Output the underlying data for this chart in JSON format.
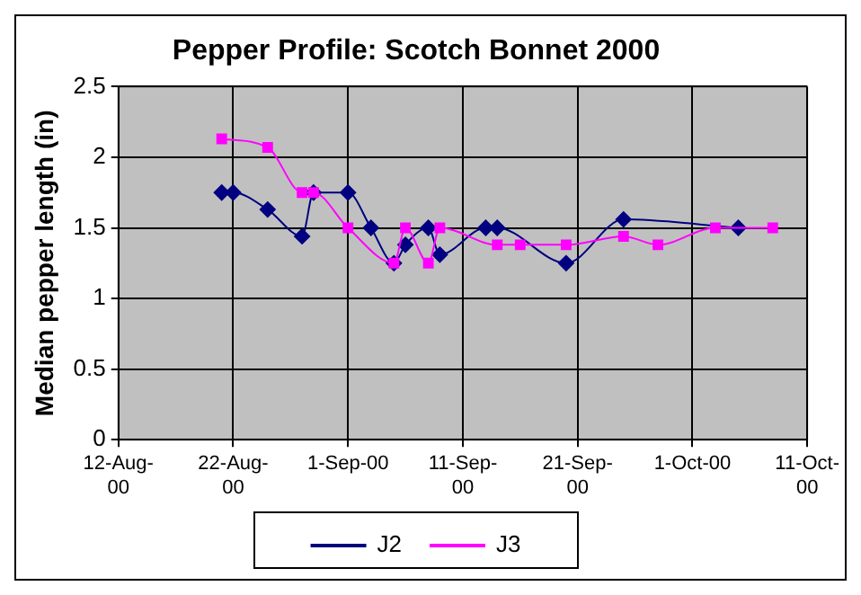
{
  "chart_data": {
    "type": "line",
    "title": "Pepper Profile: Scotch Bonnet 2000",
    "ylabel": "Median pepper length (in)",
    "series": [
      {
        "name": "J2",
        "color": "#000080",
        "marker": "diamond",
        "x": [
          "2000-08-21",
          "2000-08-22",
          "2000-08-25",
          "2000-08-28",
          "2000-08-29",
          "2000-09-01",
          "2000-09-03",
          "2000-09-05",
          "2000-09-06",
          "2000-09-08",
          "2000-09-09",
          "2000-09-13",
          "2000-09-14",
          "2000-09-20",
          "2000-09-25",
          "2000-10-05"
        ],
        "values": [
          1.75,
          1.75,
          1.63,
          1.44,
          1.75,
          1.75,
          1.5,
          1.25,
          1.38,
          1.5,
          1.31,
          1.5,
          1.5,
          1.25,
          1.56,
          1.5
        ]
      },
      {
        "name": "J3",
        "color": "#ff00ff",
        "marker": "square",
        "x": [
          "2000-08-21",
          "2000-08-25",
          "2000-08-28",
          "2000-08-29",
          "2000-09-01",
          "2000-09-05",
          "2000-09-06",
          "2000-09-08",
          "2000-09-09",
          "2000-09-14",
          "2000-09-16",
          "2000-09-20",
          "2000-09-25",
          "2000-09-28",
          "2000-10-03",
          "2000-10-08"
        ],
        "values": [
          2.13,
          2.07,
          1.75,
          1.75,
          1.5,
          1.25,
          1.5,
          1.25,
          1.5,
          1.38,
          1.38,
          1.38,
          1.44,
          1.38,
          1.5,
          1.5
        ]
      }
    ],
    "xlim": [
      "2000-08-12",
      "2000-10-11"
    ],
    "xticks": [
      {
        "value": "2000-08-12",
        "label": "12-Aug-00"
      },
      {
        "value": "2000-08-22",
        "label": "22-Aug-00"
      },
      {
        "value": "2000-09-01",
        "label": "1-Sep-00"
      },
      {
        "value": "2000-09-11",
        "label": "11-Sep-00"
      },
      {
        "value": "2000-09-21",
        "label": "21-Sep-00"
      },
      {
        "value": "2000-10-01",
        "label": "1-Oct-00"
      },
      {
        "value": "2000-10-11",
        "label": "11-Oct-00"
      }
    ],
    "ylim": [
      0,
      2.5
    ],
    "yticks": [
      0,
      0.5,
      1,
      1.5,
      2,
      2.5
    ],
    "grid": true,
    "legend": "bottom",
    "line_style": "solid"
  }
}
